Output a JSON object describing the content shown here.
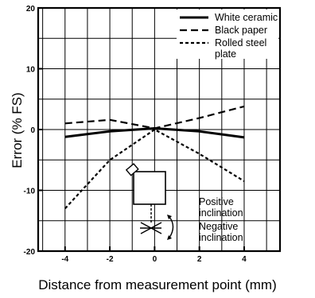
{
  "chart_data": {
    "type": "line",
    "xlabel": "Distance from measurement point (mm)",
    "ylabel": "Error (% FS)",
    "xlim": [
      -5.2,
      5.6
    ],
    "ylim": [
      -20,
      20
    ],
    "x_ticks": [
      -4,
      -2,
      0,
      2,
      4
    ],
    "y_ticks": [
      20,
      10,
      0,
      -10,
      -20
    ],
    "x_tick_labels": [
      "-4",
      "-2",
      "0",
      "2",
      "4"
    ],
    "y_tick_labels": [
      "20",
      "10",
      "0",
      "-10",
      "-20"
    ],
    "grid": true,
    "legend_position": "top-right",
    "series": [
      {
        "name": "White ceramic",
        "style": "solid",
        "x": [
          -4,
          -2,
          0,
          2,
          4
        ],
        "y": [
          -1.2,
          -0.3,
          0.2,
          -0.3,
          -1.3
        ]
      },
      {
        "name": "Black paper",
        "style": "dashed",
        "x": [
          -4,
          -2,
          0,
          2,
          4
        ],
        "y": [
          1.0,
          1.6,
          0.2,
          1.9,
          3.8
        ]
      },
      {
        "name": "Rolled steel plate",
        "name_lines": [
          "Rolled steel",
          "plate"
        ],
        "style": "dotted",
        "x": [
          -4,
          -2,
          0,
          2,
          4
        ],
        "y": [
          -13,
          -5,
          0,
          -4,
          -8.5
        ]
      }
    ],
    "annotations": {
      "positive": [
        "Positive",
        "inclination"
      ],
      "negative": [
        "Negative",
        "inclination"
      ]
    }
  }
}
